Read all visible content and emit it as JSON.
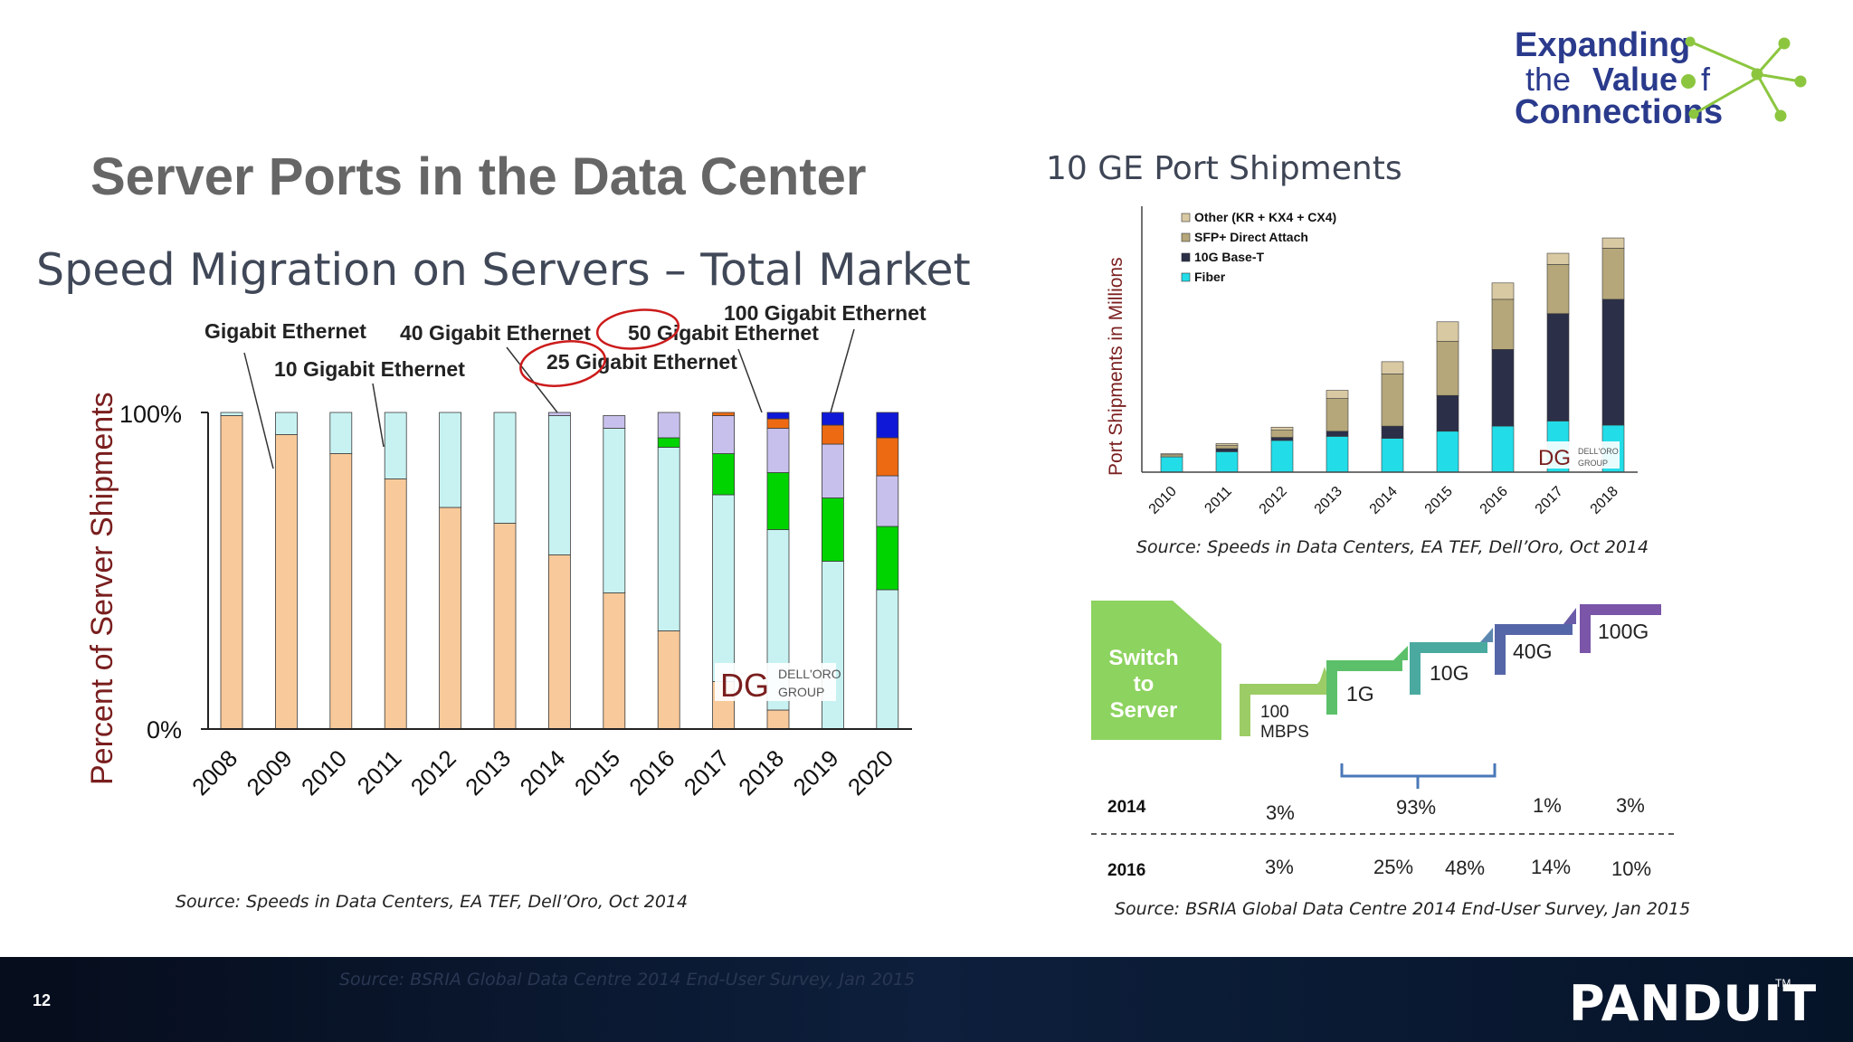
{
  "slide": {
    "title": "Server Ports in the Data Center",
    "page_number": "12"
  },
  "brand": {
    "line1": "Expanding",
    "line2_a": "the",
    "line2_b": "Value",
    "line2_c": "f",
    "line3": "Connections",
    "colors": {
      "blue": "#2a3a8c",
      "green": "#8cc63f"
    }
  },
  "footer": {
    "ghost_text": "Source: BSRIA Global Data Centre 2014 End-User Survey, Jan 2015",
    "logo": "PANDUIT",
    "trademark": "TM"
  },
  "left_chart": {
    "subtitle": "Speed Migration on Servers – Total Market",
    "source": "Source: Speeds in Data Centers, EA TEF, Dell’Oro, Oct 2014",
    "watermark_top": "DELL'ORO",
    "watermark_bottom": "GROUP",
    "watermark_initials": "DG"
  },
  "right_chart": {
    "title": "10 GE Port Shipments",
    "source": "Source: Speeds in Data Centers, EA TEF, Dell’Oro, Oct 2014",
    "watermark_top": "DELL'ORO",
    "watermark_bottom": "GROUP",
    "watermark_initials": "DG"
  },
  "chart_data": [
    {
      "type": "bar",
      "stacked": true,
      "title": "Speed Migration on Servers – Total Market",
      "ylabel": "Percent of Server Shipments",
      "xlabel": "",
      "ylim": [
        0,
        100
      ],
      "ytick_labels": [
        "0%",
        "100%"
      ],
      "categories": [
        "2008",
        "2009",
        "2010",
        "2011",
        "2012",
        "2013",
        "2014",
        "2015",
        "2016",
        "2017",
        "2018",
        "2019",
        "2020"
      ],
      "series": [
        {
          "name": "Gigabit Ethernet",
          "color": "#f8c99a",
          "values": [
            99,
            93,
            87,
            79,
            70,
            65,
            55,
            43,
            31,
            15,
            6,
            0,
            0
          ]
        },
        {
          "name": "10 Gigabit Ethernet",
          "color": "#c8f2f2",
          "values": [
            1,
            7,
            13,
            21,
            30,
            35,
            44,
            52,
            58,
            59,
            57,
            53,
            44
          ]
        },
        {
          "name": "25 Gigabit Ethernet",
          "color": "#00d400",
          "values": [
            0,
            0,
            0,
            0,
            0,
            0,
            0,
            0,
            3,
            13,
            18,
            20,
            20
          ]
        },
        {
          "name": "40 Gigabit Ethernet",
          "color": "#c8c0ec",
          "values": [
            0,
            0,
            0,
            0,
            0,
            0,
            1,
            4,
            8,
            12,
            14,
            17,
            16
          ]
        },
        {
          "name": "50 Gigabit Ethernet",
          "color": "#ee6a12",
          "values": [
            0,
            0,
            0,
            0,
            0,
            0,
            0,
            0,
            0,
            1,
            3,
            6,
            12
          ]
        },
        {
          "name": "100 Gigabit Ethernet",
          "color": "#1018d8",
          "values": [
            0,
            0,
            0,
            0,
            0,
            0,
            0,
            0,
            0,
            0,
            2,
            4,
            8
          ]
        }
      ],
      "annotations": [
        "Gigabit Ethernet",
        "10 Gigabit Ethernet",
        "40 Gigabit Ethernet",
        "25 Gigabit Ethernet",
        "50 Gigabit Ethernet",
        "100 Gigabit Ethernet"
      ],
      "highlighted": [
        "25 Gigabit Ethernet",
        "50 Gigabit Ethernet"
      ],
      "grid": false
    },
    {
      "type": "bar",
      "stacked": true,
      "title": "10 GE Port Shipments",
      "ylabel": "Port Shipments in Millions",
      "xlabel": "",
      "categories": [
        "2010",
        "2011",
        "2012",
        "2013",
        "2014",
        "2015",
        "2016",
        "2017",
        "2018"
      ],
      "ylim": [
        0,
        26
      ],
      "series": [
        {
          "name": "Fiber",
          "color": "#22dde8",
          "values": [
            1.5,
            2.0,
            3.1,
            3.5,
            3.3,
            4.0,
            4.5,
            5.0,
            4.6
          ]
        },
        {
          "name": "10G Base-T",
          "color": "#2b2f48",
          "values": [
            0.0,
            0.3,
            0.3,
            0.5,
            1.2,
            3.5,
            7.5,
            10.5,
            12.3
          ]
        },
        {
          "name": "SFP+ Direct Attach",
          "color": "#b5a77a",
          "values": [
            0.2,
            0.3,
            0.7,
            3.2,
            5.1,
            5.3,
            4.9,
            4.8,
            5.0
          ]
        },
        {
          "name": "Other (KR + KX4 + CX4)",
          "color": "#d9c9a3",
          "values": [
            0.1,
            0.2,
            0.3,
            0.8,
            1.2,
            1.9,
            1.6,
            1.1,
            1.0
          ]
        }
      ],
      "legend": "top-left",
      "grid": false
    }
  ],
  "speed_graphic": {
    "switch_label": [
      "Switch",
      "to",
      "Server"
    ],
    "steps": [
      {
        "label1": "100",
        "label2": "MBPS",
        "color": "#9ccc65"
      },
      {
        "label1": "1G",
        "label2": "",
        "color": "#5cc06a"
      },
      {
        "label1": "10G",
        "label2": "",
        "color": "#4aaaa0"
      },
      {
        "label1": "40G",
        "label2": "",
        "color": "#5566a8"
      },
      {
        "label1": "100G",
        "label2": "",
        "color": "#7a55a8"
      }
    ],
    "rows": [
      {
        "year": "2014",
        "values": [
          "3%",
          "93%",
          "1%",
          "3%"
        ]
      },
      {
        "year": "2016",
        "values": [
          "3%",
          "25%",
          "48%",
          "14%",
          "10%"
        ]
      }
    ],
    "source": "Source: BSRIA Global Data Centre 2014 End-User Survey, Jan 2015"
  }
}
